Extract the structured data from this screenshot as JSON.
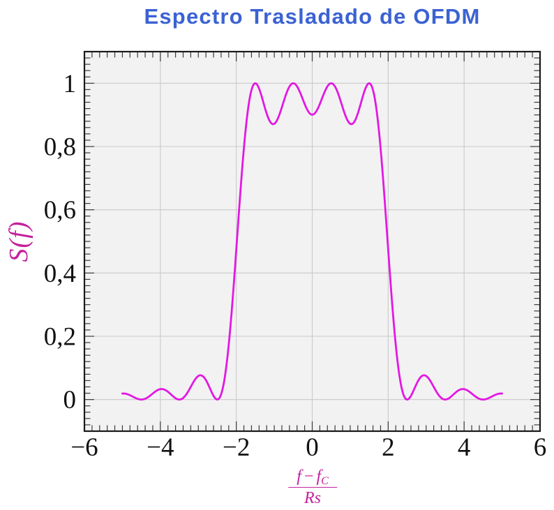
{
  "figure": {
    "background": "#ffffff"
  },
  "chart_data": {
    "type": "line",
    "title": "Espectro Trasladado de OFDM",
    "title_color": "#3b62d3",
    "ylabel": "S(f)",
    "label_color": "#c4219c",
    "xlim": [
      -6,
      6
    ],
    "ylim": [
      -0.1,
      1.1
    ],
    "x_major_ticks": [
      -6,
      -4,
      -2,
      0,
      2,
      4,
      6
    ],
    "x_tick_labels": [
      "−6",
      "−4",
      "−2",
      "0",
      "2",
      "4",
      "6"
    ],
    "y_major_ticks": [
      0,
      0.2,
      0.4,
      0.6,
      0.8,
      1
    ],
    "y_tick_labels": [
      "0",
      "0,2",
      "0,4",
      "0,6",
      "0,8",
      "1"
    ],
    "x_minor_step": 0.2,
    "y_minor_step": 0.02,
    "grid": "major",
    "grid_color": "#c9c9c9",
    "plot_bg": "#f2f2f2",
    "frame_color": "#1a1a1a",
    "tick_color": "#3a3a3a",
    "series": [
      {
        "name": "S(f)",
        "color": "#e318e3",
        "x": [
          -5.0,
          -4.975,
          -4.95,
          -4.925,
          -4.9,
          -4.875,
          -4.85,
          -4.825,
          -4.8,
          -4.775,
          -4.75,
          -4.725,
          -4.7,
          -4.675,
          -4.65,
          -4.625,
          -4.6,
          -4.575,
          -4.55,
          -4.525,
          -4.5,
          -4.475,
          -4.45,
          -4.425,
          -4.4,
          -4.375,
          -4.35,
          -4.325,
          -4.3,
          -4.275,
          -4.25,
          -4.225,
          -4.2,
          -4.175,
          -4.15,
          -4.125,
          -4.1,
          -4.075,
          -4.05,
          -4.025,
          -4.0,
          -3.975,
          -3.95,
          -3.925,
          -3.9,
          -3.875,
          -3.85,
          -3.825,
          -3.8,
          -3.775,
          -3.75,
          -3.725,
          -3.7,
          -3.675,
          -3.65,
          -3.625,
          -3.6,
          -3.575,
          -3.55,
          -3.525,
          -3.5,
          -3.475,
          -3.45,
          -3.425,
          -3.4,
          -3.375,
          -3.35,
          -3.325,
          -3.3,
          -3.275,
          -3.25,
          -3.225,
          -3.2,
          -3.175,
          -3.15,
          -3.125,
          -3.1,
          -3.075,
          -3.05,
          -3.025,
          -3.0,
          -2.975,
          -2.95,
          -2.925,
          -2.9,
          -2.875,
          -2.85,
          -2.825,
          -2.8,
          -2.775,
          -2.75,
          -2.725,
          -2.7,
          -2.675,
          -2.65,
          -2.625,
          -2.6,
          -2.575,
          -2.55,
          -2.525,
          -2.5,
          -2.475,
          -2.45,
          -2.425,
          -2.4,
          -2.375,
          -2.35,
          -2.325,
          -2.3,
          -2.275,
          -2.25,
          -2.225,
          -2.2,
          -2.175,
          -2.15,
          -2.125,
          -2.1,
          -2.075,
          -2.05,
          -2.025,
          -2.0,
          -1.975,
          -1.95,
          -1.925,
          -1.9,
          -1.875,
          -1.85,
          -1.825,
          -1.8,
          -1.775,
          -1.75,
          -1.725,
          -1.7,
          -1.675,
          -1.65,
          -1.625,
          -1.6,
          -1.575,
          -1.55,
          -1.525,
          -1.5,
          -1.475,
          -1.45,
          -1.425,
          -1.4,
          -1.375,
          -1.35,
          -1.325,
          -1.3,
          -1.275,
          -1.25,
          -1.225,
          -1.2,
          -1.175,
          -1.15,
          -1.125,
          -1.1,
          -1.075,
          -1.05,
          -1.025,
          -1.0,
          -0.975,
          -0.95,
          -0.925,
          -0.9,
          -0.875,
          -0.85,
          -0.825,
          -0.8,
          -0.775,
          -0.75,
          -0.725,
          -0.7,
          -0.675,
          -0.65,
          -0.625,
          -0.6,
          -0.575,
          -0.55,
          -0.525,
          -0.5,
          -0.475,
          -0.45,
          -0.425,
          -0.4,
          -0.375,
          -0.35,
          -0.325,
          -0.3,
          -0.275,
          -0.25,
          -0.225,
          -0.2,
          -0.175,
          -0.15,
          -0.125,
          -0.1,
          -0.075,
          -0.05,
          -0.025,
          0.0,
          0.025,
          0.05,
          0.075,
          0.1,
          0.125,
          0.15,
          0.175,
          0.2,
          0.225,
          0.25,
          0.275,
          0.3,
          0.325,
          0.35,
          0.375,
          0.4,
          0.425,
          0.45,
          0.475,
          0.5,
          0.525,
          0.55,
          0.575,
          0.6,
          0.625,
          0.65,
          0.675,
          0.7,
          0.725,
          0.75,
          0.775,
          0.8,
          0.825,
          0.85,
          0.875,
          0.9,
          0.925,
          0.95,
          0.975,
          1.0,
          1.025,
          1.05,
          1.075,
          1.1,
          1.125,
          1.15,
          1.175,
          1.2,
          1.225,
          1.25,
          1.275,
          1.3,
          1.325,
          1.35,
          1.375,
          1.4,
          1.425,
          1.45,
          1.475,
          1.5,
          1.525,
          1.55,
          1.575,
          1.6,
          1.625,
          1.65,
          1.675,
          1.7,
          1.725,
          1.75,
          1.775,
          1.8,
          1.825,
          1.85,
          1.875,
          1.9,
          1.925,
          1.95,
          1.975,
          2.0,
          2.025,
          2.05,
          2.075,
          2.1,
          2.125,
          2.15,
          2.175,
          2.2,
          2.225,
          2.25,
          2.275,
          2.3,
          2.325,
          2.35,
          2.375,
          2.4,
          2.425,
          2.45,
          2.475,
          2.5,
          2.525,
          2.55,
          2.575,
          2.6,
          2.625,
          2.65,
          2.675,
          2.7,
          2.725,
          2.75,
          2.775,
          2.8,
          2.825,
          2.85,
          2.875,
          2.9,
          2.925,
          2.95,
          2.975,
          3.0,
          3.025,
          3.05,
          3.075,
          3.1,
          3.125,
          3.15,
          3.175,
          3.2,
          3.225,
          3.25,
          3.275,
          3.3,
          3.325,
          3.35,
          3.375,
          3.4,
          3.425,
          3.45,
          3.475,
          3.5,
          3.525,
          3.55,
          3.575,
          3.6,
          3.625,
          3.65,
          3.675,
          3.7,
          3.725,
          3.75,
          3.775,
          3.8,
          3.825,
          3.85,
          3.875,
          3.9,
          3.925,
          3.95,
          3.975,
          4.0,
          4.025,
          4.05,
          4.075,
          4.1,
          4.125,
          4.15,
          4.175,
          4.2,
          4.225,
          4.25,
          4.275,
          4.3,
          4.325,
          4.35,
          4.375,
          4.4,
          4.425,
          4.45,
          4.475,
          4.5,
          4.525,
          4.55,
          4.575,
          4.6,
          4.625,
          4.65,
          4.675,
          4.7,
          4.725,
          4.75,
          4.775,
          4.8,
          4.825,
          4.85,
          4.875,
          4.9,
          4.925,
          4.95,
          4.975,
          5.0
        ],
        "y": [
          0.019,
          0.0191,
          0.019,
          0.0186,
          0.018,
          0.0172,
          0.0162,
          0.015,
          0.0137,
          0.0123,
          0.0107,
          0.0092,
          0.0076,
          0.0061,
          0.0047,
          0.0034,
          0.0022,
          0.0013,
          0.0006,
          0.0001,
          0.0,
          0.0002,
          0.0006,
          0.0014,
          0.0025,
          0.0038,
          0.0055,
          0.0074,
          0.0094,
          0.0117,
          0.0141,
          0.0165,
          0.019,
          0.0214,
          0.0237,
          0.0259,
          0.0279,
          0.0296,
          0.031,
          0.0321,
          0.0328,
          0.0332,
          0.0331,
          0.0326,
          0.0317,
          0.0304,
          0.0288,
          0.0268,
          0.0246,
          0.0221,
          0.0194,
          0.0167,
          0.0139,
          0.0112,
          0.0086,
          0.0062,
          0.0041,
          0.0024,
          0.0011,
          0.0003,
          0.0,
          0.0003,
          0.0012,
          0.0027,
          0.0049,
          0.0076,
          0.011,
          0.0148,
          0.0192,
          0.024,
          0.0291,
          0.0344,
          0.0399,
          0.0454,
          0.0508,
          0.0559,
          0.0608,
          0.0651,
          0.069,
          0.0721,
          0.0745,
          0.0761,
          0.0768,
          0.0765,
          0.0753,
          0.0732,
          0.0701,
          0.0662,
          0.0615,
          0.056,
          0.05,
          0.0436,
          0.0369,
          0.0302,
          0.0236,
          0.0174,
          0.0118,
          0.007,
          0.0033,
          0.0009,
          0.0,
          0.0009,
          0.0038,
          0.0089,
          0.0164,
          0.0264,
          0.039,
          0.0543,
          0.0724,
          0.0933,
          0.1169,
          0.1433,
          0.1722,
          0.2037,
          0.2374,
          0.2733,
          0.311,
          0.3503,
          0.3909,
          0.4325,
          0.4748,
          0.5174,
          0.5599,
          0.602,
          0.6434,
          0.6837,
          0.7225,
          0.7596,
          0.7947,
          0.8275,
          0.8578,
          0.8854,
          0.9101,
          0.9318,
          0.9505,
          0.9662,
          0.9787,
          0.9883,
          0.9949,
          0.9988,
          1.0,
          0.9988,
          0.9955,
          0.9902,
          0.9833,
          0.975,
          0.9657,
          0.9556,
          0.9451,
          0.9344,
          0.9239,
          0.9137,
          0.9042,
          0.8956,
          0.888,
          0.8817,
          0.8767,
          0.8732,
          0.8712,
          0.8707,
          0.8718,
          0.8744,
          0.8783,
          0.8836,
          0.89,
          0.8975,
          0.9057,
          0.9146,
          0.924,
          0.9335,
          0.9431,
          0.9524,
          0.9614,
          0.9697,
          0.9773,
          0.984,
          0.9897,
          0.9941,
          0.9974,
          0.9993,
          1.0,
          0.9994,
          0.9975,
          0.9944,
          0.9902,
          0.985,
          0.9789,
          0.9722,
          0.965,
          0.9574,
          0.9496,
          0.9419,
          0.9344,
          0.9273,
          0.9207,
          0.9149,
          0.9099,
          0.9059,
          0.903,
          0.9012,
          0.9006,
          0.9012,
          0.903,
          0.9059,
          0.9099,
          0.9149,
          0.9207,
          0.9273,
          0.9344,
          0.9419,
          0.9496,
          0.9574,
          0.965,
          0.9722,
          0.9789,
          0.985,
          0.9902,
          0.9944,
          0.9975,
          0.9994,
          1.0,
          0.9993,
          0.9974,
          0.9941,
          0.9897,
          0.984,
          0.9773,
          0.9697,
          0.9614,
          0.9524,
          0.9431,
          0.9335,
          0.924,
          0.9146,
          0.9057,
          0.8975,
          0.89,
          0.8836,
          0.8783,
          0.8744,
          0.8718,
          0.8707,
          0.8712,
          0.8732,
          0.8767,
          0.8817,
          0.888,
          0.8956,
          0.9042,
          0.9137,
          0.9239,
          0.9344,
          0.9451,
          0.9556,
          0.9657,
          0.975,
          0.9833,
          0.9902,
          0.9955,
          0.9988,
          1.0,
          0.9988,
          0.9949,
          0.9883,
          0.9787,
          0.9662,
          0.9505,
          0.9318,
          0.9101,
          0.8854,
          0.8578,
          0.8275,
          0.7947,
          0.7596,
          0.7225,
          0.6837,
          0.6434,
          0.602,
          0.5599,
          0.5174,
          0.4748,
          0.4325,
          0.3909,
          0.3503,
          0.311,
          0.2733,
          0.2374,
          0.2037,
          0.1722,
          0.1433,
          0.1169,
          0.0933,
          0.0724,
          0.0543,
          0.039,
          0.0264,
          0.0164,
          0.0089,
          0.0038,
          0.0009,
          0.0,
          0.0009,
          0.0033,
          0.007,
          0.0118,
          0.0174,
          0.0236,
          0.0302,
          0.0369,
          0.0436,
          0.05,
          0.056,
          0.0615,
          0.0662,
          0.0701,
          0.0732,
          0.0753,
          0.0765,
          0.0768,
          0.0761,
          0.0745,
          0.0721,
          0.069,
          0.0651,
          0.0608,
          0.0559,
          0.0508,
          0.0454,
          0.0399,
          0.0344,
          0.0291,
          0.024,
          0.0192,
          0.0148,
          0.011,
          0.0076,
          0.0049,
          0.0027,
          0.0012,
          0.0003,
          0.0,
          0.0003,
          0.0011,
          0.0024,
          0.0041,
          0.0062,
          0.0086,
          0.0112,
          0.0139,
          0.0167,
          0.0194,
          0.0221,
          0.0246,
          0.0268,
          0.0288,
          0.0304,
          0.0317,
          0.0326,
          0.0331,
          0.0332,
          0.0328,
          0.0321,
          0.031,
          0.0296,
          0.0279,
          0.0259,
          0.0237,
          0.0214,
          0.019,
          0.0165,
          0.0141,
          0.0117,
          0.0094,
          0.0074,
          0.0055,
          0.0038,
          0.0025,
          0.0014,
          0.0006,
          0.0002,
          0.0,
          0.0001,
          0.0006,
          0.0013,
          0.0022,
          0.0034,
          0.0047,
          0.0061,
          0.0076,
          0.0092,
          0.0107,
          0.0123,
          0.0137,
          0.015,
          0.0162,
          0.0172,
          0.018,
          0.0186,
          0.019,
          0.0191,
          0.019
        ]
      }
    ]
  },
  "xlabel": {
    "num_f1": "f",
    "num_minus": "−",
    "num_f2": "f",
    "num_sub": "C",
    "den": "Rs"
  }
}
